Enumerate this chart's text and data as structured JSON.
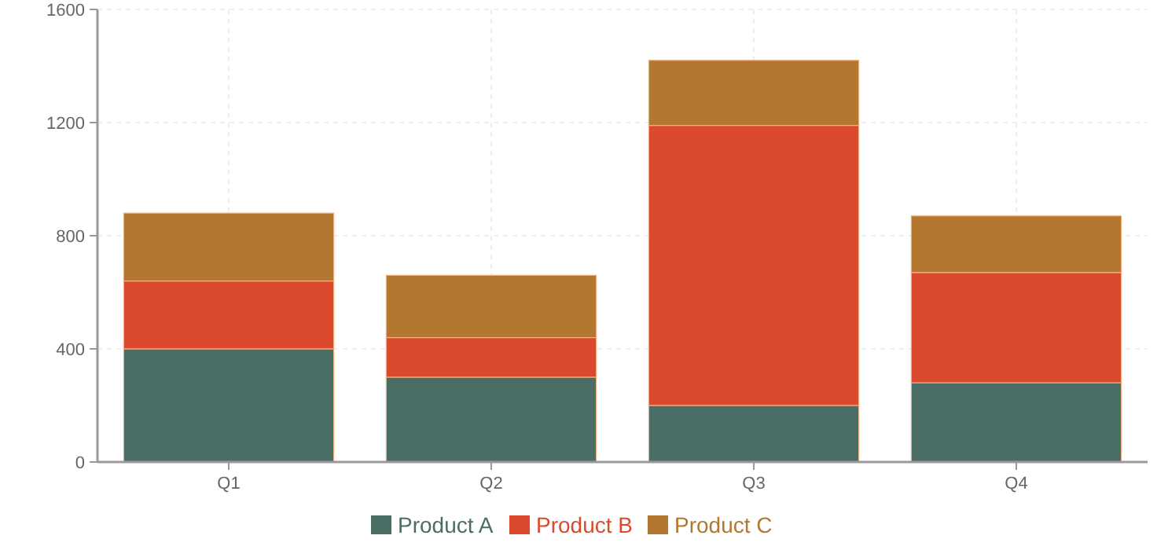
{
  "chart_data": {
    "type": "bar",
    "stacked": true,
    "categories": [
      "Q1",
      "Q2",
      "Q3",
      "Q4"
    ],
    "series": [
      {
        "name": "Product A",
        "color": "#4a6e65",
        "values": [
          400,
          300,
          200,
          280
        ]
      },
      {
        "name": "Product B",
        "color": "#dc4a2d",
        "values": [
          240,
          140,
          990,
          390
        ]
      },
      {
        "name": "Product C",
        "color": "#b3772f",
        "values": [
          240,
          220,
          230,
          200
        ]
      }
    ],
    "ylim": [
      0,
      1600
    ],
    "yticks": [
      0,
      400,
      800,
      1200,
      1600
    ],
    "grid": true,
    "legend": "bottom"
  }
}
